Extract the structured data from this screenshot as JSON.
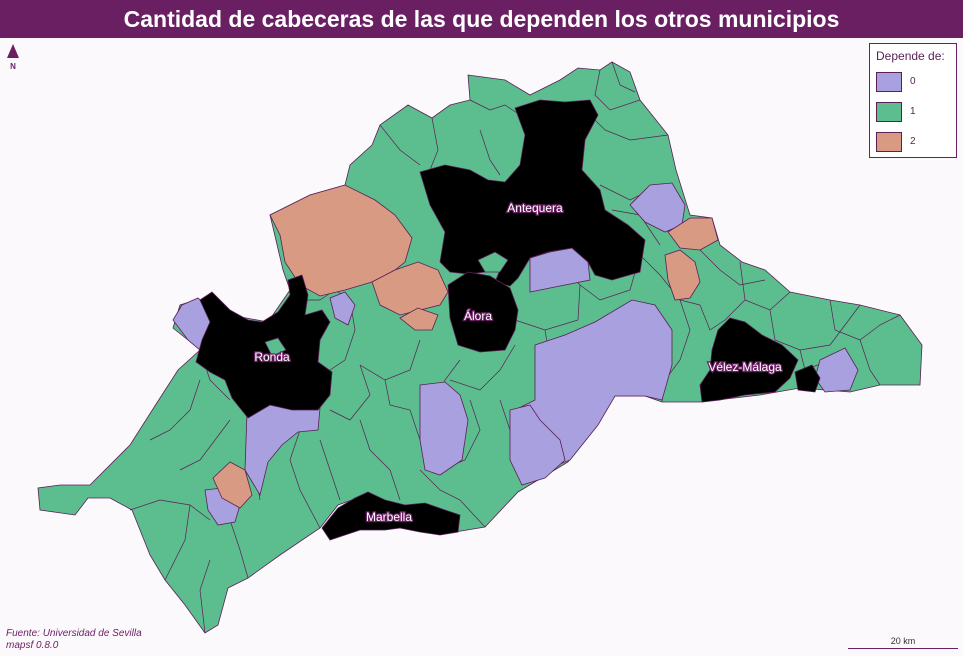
{
  "title": "Cantidad de cabeceras de las que dependen los otros municipios",
  "legend": {
    "title": "Depende de:",
    "items": [
      {
        "label": "0",
        "color": "#a9a0e0"
      },
      {
        "label": "1",
        "color": "#5cbd8e"
      },
      {
        "label": "2",
        "color": "#d99a83"
      }
    ]
  },
  "north": {
    "label": "N"
  },
  "cabeceras": [
    {
      "name": "Antequera",
      "color": "#000000"
    },
    {
      "name": "Álora",
      "color": "#000000"
    },
    {
      "name": "Ronda",
      "color": "#000000"
    },
    {
      "name": "Vélez-Málaga",
      "color": "#000000"
    },
    {
      "name": "Marbella",
      "color": "#000000"
    }
  ],
  "source": {
    "line1": "Fuente: Universidad de Sevilla",
    "line2": "mapsf 0.8.0"
  },
  "scale": {
    "label": "20 km"
  }
}
